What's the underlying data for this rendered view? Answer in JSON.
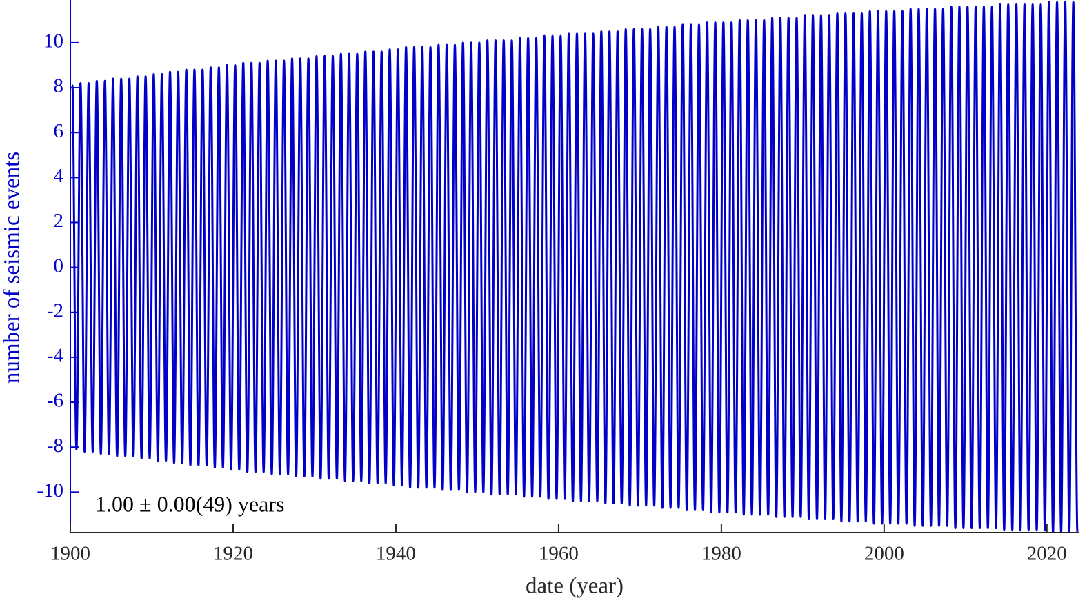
{
  "chart_data": {
    "type": "line",
    "x_label": "date (year)",
    "y_label": "number of seismic events",
    "annotation": "1.00 ± 0.00(49) years",
    "xlim": [
      1900,
      2024
    ],
    "xticks": [
      1900,
      1920,
      1940,
      1960,
      1980,
      2000,
      2020
    ],
    "ylim": [
      -11.8,
      11.9
    ],
    "yticks": [
      -10,
      -8,
      -6,
      -4,
      -2,
      0,
      2,
      4,
      6,
      8,
      10
    ],
    "color": "#0000c8",
    "x": [
      1900.25,
      1900.75,
      1901.25,
      1901.75,
      1902.25,
      1902.75,
      1903.25,
      1903.75,
      1904.25,
      1904.75,
      1905.25,
      1905.75,
      1906.25,
      1906.75,
      1907.25,
      1907.75,
      1908.25,
      1908.75,
      1909.25,
      1909.75,
      1910.25,
      1910.75,
      1911.25,
      1911.75,
      1912.25,
      1912.75,
      1913.25,
      1913.75,
      1914.25,
      1914.75,
      1915.25,
      1915.75,
      1916.25,
      1916.75,
      1917.25,
      1917.75,
      1918.25,
      1918.75,
      1919.25,
      1919.75,
      1920.25,
      1920.75,
      1921.25,
      1921.75,
      1922.25,
      1922.75,
      1923.25,
      1923.75,
      1924.25,
      1924.75,
      1925.25,
      1925.75,
      1926.25,
      1926.75,
      1927.25,
      1927.75,
      1928.25,
      1928.75,
      1929.25,
      1929.75,
      1930.25,
      1930.75,
      1931.25,
      1931.75,
      1932.25,
      1932.75,
      1933.25,
      1933.75,
      1934.25,
      1934.75,
      1935.25,
      1935.75,
      1936.25,
      1936.75,
      1937.25,
      1937.75,
      1938.25,
      1938.75,
      1939.25,
      1939.75,
      1940.25,
      1940.75,
      1941.25,
      1941.75,
      1942.25,
      1942.75,
      1943.25,
      1943.75,
      1944.25,
      1944.75,
      1945.25,
      1945.75,
      1946.25,
      1946.75,
      1947.25,
      1947.75,
      1948.25,
      1948.75,
      1949.25,
      1949.75,
      1950.25,
      1950.75,
      1951.25,
      1951.75,
      1952.25,
      1952.75,
      1953.25,
      1953.75,
      1954.25,
      1954.75,
      1955.25,
      1955.75,
      1956.25,
      1956.75,
      1957.25,
      1957.75,
      1958.25,
      1958.75,
      1959.25,
      1959.75,
      1960.25,
      1960.75,
      1961.25,
      1961.75,
      1962.25,
      1962.75,
      1963.25,
      1963.75,
      1964.25,
      1964.75,
      1965.25,
      1965.75,
      1966.25,
      1966.75,
      1967.25,
      1967.75,
      1968.25,
      1968.75,
      1969.25,
      1969.75,
      1970.25,
      1970.75,
      1971.25,
      1971.75,
      1972.25,
      1972.75,
      1973.25,
      1973.75,
      1974.25,
      1974.75,
      1975.25,
      1975.75,
      1976.25,
      1976.75,
      1977.25,
      1977.75,
      1978.25,
      1978.75,
      1979.25,
      1979.75,
      1980.25,
      1980.75,
      1981.25,
      1981.75,
      1982.25,
      1982.75,
      1983.25,
      1983.75,
      1984.25,
      1984.75,
      1985.25,
      1985.75,
      1986.25,
      1986.75,
      1987.25,
      1987.75,
      1988.25,
      1988.75,
      1989.25,
      1989.75,
      1990.25,
      1990.75,
      1991.25,
      1991.75,
      1992.25,
      1992.75,
      1993.25,
      1993.75,
      1994.25,
      1994.75,
      1995.25,
      1995.75,
      1996.25,
      1996.75,
      1997.25,
      1997.75,
      1998.25,
      1998.75,
      1999.25,
      1999.75,
      2000.25,
      2000.75,
      2001.25,
      2001.75,
      2002.25,
      2002.75,
      2003.25,
      2003.75,
      2004.25,
      2004.75,
      2005.25,
      2005.75,
      2006.25,
      2006.75,
      2007.25,
      2007.75,
      2008.25,
      2008.75,
      2009.25,
      2009.75,
      2010.25,
      2010.75,
      2011.25,
      2011.75,
      2012.25,
      2012.75,
      2013.25,
      2013.75,
      2014.25,
      2014.75,
      2015.25,
      2015.75,
      2016.25,
      2016.75,
      2017.25,
      2017.75,
      2018.25,
      2018.75,
      2019.25,
      2019.75,
      2020.25,
      2020.75,
      2021.25,
      2021.75,
      2022.25,
      2022.75,
      2023.25,
      2023.75
    ],
    "values": [
      8.1,
      -8.1,
      8.2,
      -8.2,
      8.2,
      -8.2,
      8.3,
      -8.3,
      8.3,
      -8.3,
      8.4,
      -8.4,
      8.4,
      -8.4,
      8.4,
      -8.4,
      8.5,
      -8.5,
      8.5,
      -8.5,
      8.6,
      -8.6,
      8.6,
      -8.6,
      8.7,
      -8.7,
      8.7,
      -8.7,
      8.8,
      -8.8,
      8.8,
      -8.8,
      8.8,
      -8.8,
      8.9,
      -8.9,
      8.9,
      -8.9,
      9.0,
      -9.0,
      9.0,
      -9.0,
      9.1,
      -9.1,
      9.1,
      -9.1,
      9.1,
      -9.1,
      9.2,
      -9.2,
      9.2,
      -9.2,
      9.2,
      -9.2,
      9.3,
      -9.3,
      9.3,
      -9.3,
      9.3,
      -9.3,
      9.4,
      -9.4,
      9.4,
      -9.4,
      9.4,
      -9.4,
      9.5,
      -9.5,
      9.5,
      -9.5,
      9.5,
      -9.5,
      9.6,
      -9.6,
      9.6,
      -9.6,
      9.6,
      -9.6,
      9.7,
      -9.7,
      9.7,
      -9.7,
      9.8,
      -9.8,
      9.8,
      -9.8,
      9.8,
      -9.8,
      9.8,
      -9.8,
      9.9,
      -9.9,
      9.9,
      -9.9,
      9.9,
      -9.9,
      10.0,
      -10.0,
      10.0,
      -10.0,
      10.0,
      -10.0,
      10.1,
      -10.1,
      10.1,
      -10.1,
      10.1,
      -10.1,
      10.1,
      -10.1,
      10.2,
      -10.2,
      10.2,
      -10.2,
      10.2,
      -10.2,
      10.3,
      -10.3,
      10.3,
      -10.3,
      10.3,
      -10.3,
      10.4,
      -10.4,
      10.4,
      -10.4,
      10.4,
      -10.4,
      10.4,
      -10.4,
      10.5,
      -10.5,
      10.5,
      -10.5,
      10.5,
      -10.5,
      10.6,
      -10.6,
      10.6,
      -10.6,
      10.6,
      -10.6,
      10.6,
      -10.6,
      10.7,
      -10.7,
      10.7,
      -10.7,
      10.7,
      -10.7,
      10.8,
      -10.8,
      10.8,
      -10.8,
      10.8,
      -10.8,
      10.9,
      -10.9,
      10.9,
      -10.9,
      10.9,
      -10.9,
      10.9,
      -10.9,
      11.0,
      -11.0,
      11.0,
      -11.0,
      11.0,
      -11.0,
      11.0,
      -11.0,
      11.1,
      -11.1,
      11.1,
      -11.1,
      11.1,
      -11.1,
      11.1,
      -11.1,
      11.2,
      -11.2,
      11.2,
      -11.2,
      11.2,
      -11.2,
      11.2,
      -11.2,
      11.3,
      -11.3,
      11.3,
      -11.3,
      11.3,
      -11.3,
      11.3,
      -11.3,
      11.4,
      -11.4,
      11.4,
      -11.4,
      11.4,
      -11.4,
      11.4,
      -11.4,
      11.4,
      -11.4,
      11.5,
      -11.5,
      11.5,
      -11.5,
      11.5,
      -11.5,
      11.5,
      -11.5,
      11.5,
      -11.5,
      11.6,
      -11.6,
      11.6,
      -11.6,
      11.6,
      -11.6,
      11.6,
      -11.6,
      11.6,
      -11.6,
      11.6,
      -11.6,
      11.7,
      -11.7,
      11.7,
      -11.7,
      11.7,
      -11.7,
      11.7,
      -11.7,
      11.7,
      -11.7,
      11.7,
      -11.7,
      11.8,
      -11.8,
      11.8,
      -11.8,
      11.8,
      -11.8,
      11.8,
      -11.8
    ]
  }
}
